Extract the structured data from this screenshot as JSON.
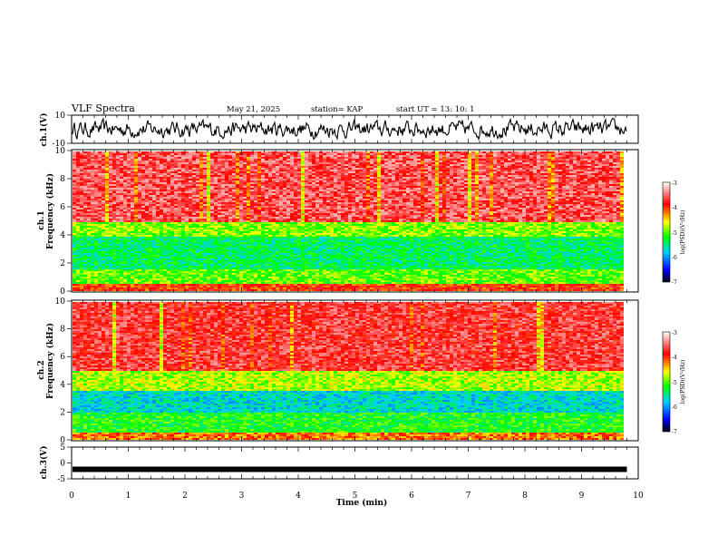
{
  "header": {
    "title": "VLF Spectra",
    "date": "May 21, 2025",
    "station": "station= KAP",
    "start": "start  UT  =   13: 10: 1"
  },
  "chart_data": [
    {
      "type": "line",
      "name": "ch1-waveform",
      "ylabel": "ch.1(V)",
      "ylim": [
        -10,
        10
      ],
      "yticks": [
        "10",
        "-10"
      ],
      "x_range_min": [
        0,
        9.8
      ],
      "description_values": "noise waveform mostly between -5 and 5 V"
    },
    {
      "type": "heatmap",
      "name": "ch1-spectrogram",
      "ylabel": "ch.1\nFrequency (kHz)",
      "ylabel_lines": [
        "ch.1",
        "Frequency  (kHz)"
      ],
      "ylim": [
        0,
        10
      ],
      "yticks": [
        "0",
        "2",
        "4",
        "6",
        "8",
        "10"
      ],
      "x_range_min": [
        0,
        9.8
      ],
      "bands_khz": [
        {
          "from": 0,
          "to": 0.5,
          "level": -4.0
        },
        {
          "from": 0.5,
          "to": 1.5,
          "level": -5.0
        },
        {
          "from": 1.5,
          "to": 3.9,
          "level": -5.4
        },
        {
          "from": 3.9,
          "to": 4.9,
          "level": -4.9
        },
        {
          "from": 4.9,
          "to": 10,
          "level": -3.6
        }
      ],
      "colorbar": {
        "label": "log(PSD)(V²/Hz)",
        "range": [
          -7,
          -3
        ],
        "ticks": [
          "-3",
          "-4",
          "-5",
          "-6",
          "-7"
        ]
      }
    },
    {
      "type": "heatmap",
      "name": "ch2-spectrogram",
      "ylabel_lines": [
        "ch.2",
        "Frequency  (kHz)"
      ],
      "ylim": [
        0,
        10
      ],
      "yticks": [
        "0",
        "2",
        "4",
        "6",
        "8",
        "10"
      ],
      "x_range_min": [
        0,
        9.8
      ],
      "bands_khz": [
        {
          "from": 0,
          "to": 0.5,
          "level": -4.2
        },
        {
          "from": 0.5,
          "to": 2.0,
          "level": -5.2
        },
        {
          "from": 2.0,
          "to": 3.5,
          "level": -5.7
        },
        {
          "from": 3.5,
          "to": 5.0,
          "level": -4.8
        },
        {
          "from": 5.0,
          "to": 10,
          "level": -3.7
        }
      ],
      "colorbar": {
        "label": "log(PSD)(V²/Hz)",
        "range": [
          -7,
          -3
        ],
        "ticks": [
          "-3",
          "-4",
          "-5",
          "-6",
          "-7"
        ]
      }
    },
    {
      "type": "line",
      "name": "ch3-waveform",
      "ylabel": "ch.3(V)",
      "ylim": [
        -5,
        5
      ],
      "yticks": [
        "5",
        "0",
        "-5"
      ],
      "x_range_min": [
        0,
        9.8
      ],
      "constant_value": -2
    }
  ],
  "xaxis": {
    "label": "Time  (min)",
    "range": [
      0,
      10
    ],
    "ticks": [
      "0",
      "1",
      "2",
      "3",
      "4",
      "5",
      "6",
      "7",
      "8",
      "9",
      "10"
    ]
  },
  "colors": {
    "waveform": "#000000",
    "colormap": [
      "#000000",
      "#0000ff",
      "#00d0ff",
      "#00ff00",
      "#ffff00",
      "#ff0000",
      "#ffffff"
    ]
  }
}
